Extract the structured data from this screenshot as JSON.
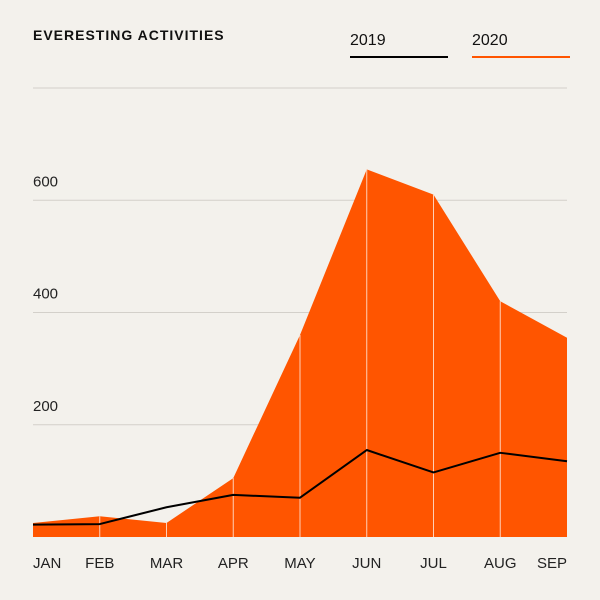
{
  "chart_data": {
    "type": "area",
    "title": "EVERESTING ACTIVITIES",
    "categories": [
      "JAN",
      "FEB",
      "MAR",
      "APR",
      "MAY",
      "JUN",
      "JUL",
      "AUG",
      "SEP"
    ],
    "series": [
      {
        "name": "2020",
        "kind": "area",
        "color": "#ff5500",
        "values": [
          25,
          37,
          25,
          105,
          360,
          655,
          610,
          420,
          355
        ]
      },
      {
        "name": "2019",
        "kind": "line",
        "color": "#000000",
        "values": [
          22,
          23,
          53,
          75,
          70,
          155,
          115,
          150,
          135
        ]
      }
    ],
    "yticks": [
      200,
      400,
      600
    ],
    "ylim": [
      0,
      800
    ],
    "grid": true,
    "legend": "top-right",
    "xlabel": "",
    "ylabel": ""
  }
}
